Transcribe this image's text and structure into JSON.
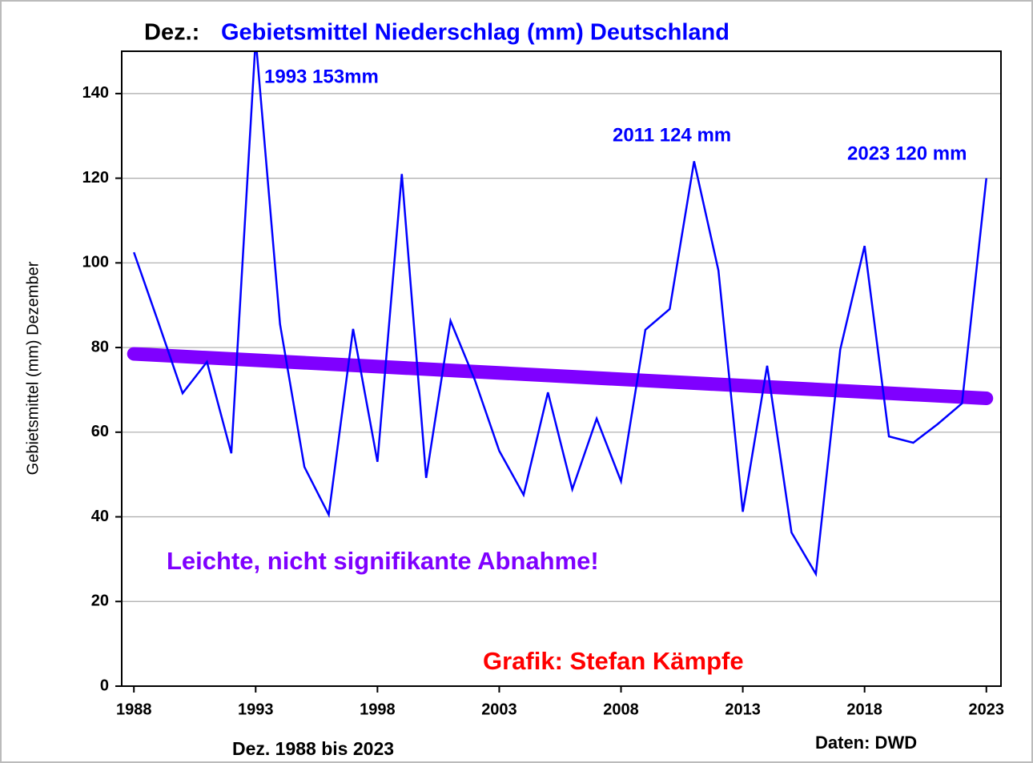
{
  "chart_data": {
    "type": "line",
    "title_prefix": "Dez.:",
    "title": "Gebietsmittel Niederschlag (mm) Deutschland",
    "y_label": "Gebietsmittel (mm) Dezember",
    "x_label": "Dez. 1988 bis 2023",
    "source": "Daten: DWD",
    "annotations": [
      "1993 153mm",
      "2011 124 mm",
      "2023 120 mm",
      "Leichte, nicht signifikante Abnahme!",
      "Grafik: Stefan Kämpfe"
    ],
    "x": [
      1988,
      1989,
      1990,
      1991,
      1992,
      1993,
      1994,
      1995,
      1996,
      1997,
      1998,
      1999,
      2000,
      2001,
      2002,
      2003,
      2004,
      2005,
      2006,
      2007,
      2008,
      2009,
      2010,
      2011,
      2012,
      2013,
      2014,
      2015,
      2016,
      2017,
      2018,
      2019,
      2020,
      2021,
      2022,
      2023
    ],
    "series": [
      {
        "color": "#0000ff",
        "values": [
          102.5,
          86,
          69.2,
          76.6,
          55,
          153,
          85.5,
          51.8,
          40.5,
          84.4,
          53,
          121,
          49.2,
          86.3,
          72.3,
          55.6,
          45.2,
          69.4,
          46.5,
          63.2,
          48.4,
          84.2,
          89.1,
          124,
          98.2,
          41.2,
          75.7,
          36.3,
          26.5,
          79.5,
          104,
          59,
          57.5,
          61.9,
          66.8,
          120
        ]
      }
    ],
    "trend": {
      "x": [
        1988,
        2023
      ],
      "values": [
        78.5,
        68
      ],
      "color": "#7f00ff"
    },
    "xlim": [
      1987.5,
      2023.6
    ],
    "xticks": [
      1988,
      1993,
      1998,
      2003,
      2008,
      2013,
      2018,
      2023
    ],
    "ylim": [
      0,
      150
    ],
    "yticks": [
      0,
      20,
      40,
      60,
      80,
      100,
      120,
      140
    ],
    "grid": true
  }
}
